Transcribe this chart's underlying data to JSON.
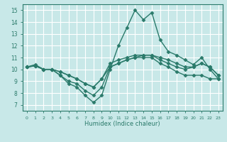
{
  "xlabel": "Humidex (Indice chaleur)",
  "xlim": [
    -0.5,
    23.5
  ],
  "ylim": [
    6.5,
    15.5
  ],
  "xticks": [
    0,
    1,
    2,
    3,
    4,
    5,
    6,
    7,
    8,
    9,
    10,
    11,
    12,
    13,
    14,
    15,
    16,
    17,
    18,
    19,
    20,
    21,
    22,
    23
  ],
  "yticks": [
    7,
    8,
    9,
    10,
    11,
    12,
    13,
    14,
    15
  ],
  "bg_color": "#c8e8e8",
  "grid_color": "#ffffff",
  "line_color": "#2a7a6a",
  "lines": [
    [
      10.2,
      10.4,
      10.0,
      10.0,
      9.5,
      8.8,
      8.5,
      7.8,
      7.2,
      7.8,
      10.0,
      12.0,
      13.5,
      15.0,
      14.2,
      14.8,
      12.5,
      11.5,
      11.2,
      10.8,
      10.4,
      11.0,
      10.0,
      9.2
    ],
    [
      10.2,
      10.3,
      10.0,
      10.0,
      9.8,
      9.5,
      9.2,
      8.8,
      8.5,
      9.2,
      10.2,
      10.5,
      10.8,
      11.0,
      11.2,
      11.2,
      10.8,
      10.5,
      10.2,
      10.0,
      10.2,
      10.5,
      10.2,
      9.5
    ],
    [
      10.2,
      10.3,
      10.0,
      10.0,
      9.8,
      9.5,
      9.2,
      8.8,
      8.5,
      9.2,
      10.5,
      10.8,
      11.0,
      11.2,
      11.2,
      11.2,
      11.0,
      10.8,
      10.5,
      10.2,
      10.2,
      10.5,
      10.2,
      9.5
    ],
    [
      10.2,
      10.3,
      10.0,
      10.0,
      9.5,
      9.0,
      8.8,
      8.2,
      7.8,
      8.5,
      10.2,
      10.5,
      10.8,
      11.0,
      11.0,
      11.0,
      10.5,
      10.2,
      9.8,
      9.5,
      9.5,
      9.5,
      9.2,
      9.2
    ]
  ],
  "marker": "D",
  "marker_size": 2.5,
  "line_width": 1.0
}
